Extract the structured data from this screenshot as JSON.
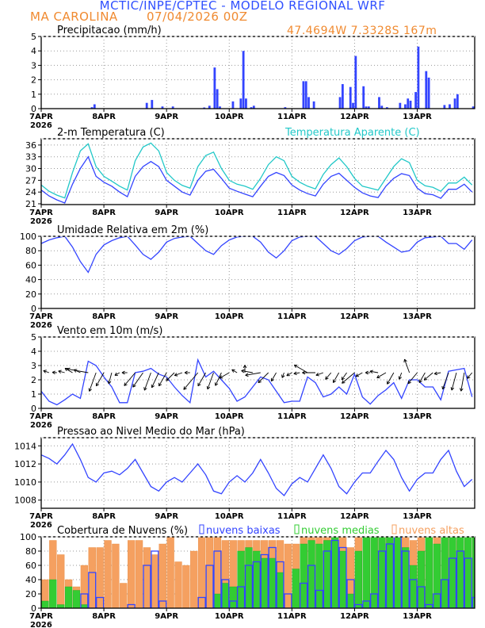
{
  "header": {
    "title": "MCTIC/INPE/CPTEC - MODELO REGIONAL WRF",
    "station": "MA CAROLINA",
    "run_date": "07/04/2026 00Z",
    "coords": "47.4694W 7.3328S 167m"
  },
  "colors": {
    "blue": "#3344ff",
    "cyan": "#22c8c8",
    "orange": "#f5a060",
    "green": "#33cc33",
    "black": "#000000",
    "title_blue": "#3050ff",
    "title_orange": "#f08a30"
  },
  "x_axis": {
    "ticks": [
      "7APR",
      "8APR",
      "9APR",
      "10APR",
      "11APR",
      "12APR",
      "13APR"
    ],
    "year": "2026",
    "start": "07APR00Z",
    "end": "13APR22Z"
  },
  "times": [
    "07APR00Z",
    "07APR03Z",
    "07APR06Z",
    "07APR09Z",
    "07APR12Z",
    "07APR15Z",
    "07APR18Z",
    "07APR21Z",
    "08APR00Z",
    "08APR03Z",
    "08APR06Z",
    "08APR09Z",
    "08APR12Z",
    "08APR15Z",
    "08APR18Z",
    "08APR21Z",
    "09APR00Z",
    "09APR03Z",
    "09APR06Z",
    "09APR09Z",
    "09APR12Z",
    "09APR15Z",
    "09APR18Z",
    "09APR21Z",
    "10APR00Z",
    "10APR03Z",
    "10APR06Z",
    "10APR09Z",
    "10APR12Z",
    "10APR15Z",
    "10APR18Z",
    "10APR21Z",
    "11APR00Z",
    "11APR03Z",
    "11APR06Z",
    "11APR09Z",
    "11APR12Z",
    "11APR15Z",
    "11APR18Z",
    "11APR21Z",
    "12APR00Z",
    "12APR03Z",
    "12APR06Z",
    "12APR09Z",
    "12APR12Z",
    "12APR15Z",
    "12APR18Z",
    "12APR21Z",
    "13APR00Z",
    "13APR03Z",
    "13APR06Z",
    "13APR09Z",
    "13APR12Z",
    "13APR15Z",
    "13APR18Z",
    "13APR21Z"
  ],
  "chart_data": [
    {
      "id": "precip",
      "type": "bar",
      "title": "Precipitacao (mm/h)",
      "ylim": [
        0,
        5
      ],
      "yticks": [
        "0",
        "1",
        "2",
        "3",
        "4",
        "5"
      ],
      "grid": true,
      "events": [
        [
          "07APR20Z",
          0.3
        ],
        [
          "07APR19Z",
          0.1
        ],
        [
          "08APR16Z",
          0.4
        ],
        [
          "08APR18Z",
          0.6
        ],
        [
          "08APR22Z",
          0.15
        ],
        [
          "09APR02Z",
          0.15
        ],
        [
          "09APR16Z",
          0.2
        ],
        [
          "09APR18Z",
          2.85
        ],
        [
          "09APR19Z",
          1.35
        ],
        [
          "09APR20Z",
          0.15
        ],
        [
          "09APR14Z",
          0.08
        ],
        [
          "10APR01Z",
          0.5
        ],
        [
          "10APR04Z",
          0.7
        ],
        [
          "10APR05Z",
          4.0
        ],
        [
          "10APR06Z",
          0.7
        ],
        [
          "10APR09Z",
          0.2
        ],
        [
          "10APR08Z",
          0.1
        ],
        [
          "10APR21Z",
          0.1
        ],
        [
          "11APR04Z",
          1.9
        ],
        [
          "11APR05Z",
          1.9
        ],
        [
          "11APR06Z",
          0.8
        ],
        [
          "11APR08Z",
          0.5
        ],
        [
          "11APR18Z",
          0.8
        ],
        [
          "11APR19Z",
          1.7
        ],
        [
          "11APR22Z",
          1.5
        ],
        [
          "11APR23Z",
          0.4
        ],
        [
          "12APR00Z",
          3.65
        ],
        [
          "12APR03Z",
          1.55
        ],
        [
          "12APR04Z",
          0.15
        ],
        [
          "12APR05Z",
          0.15
        ],
        [
          "12APR09Z",
          0.8
        ],
        [
          "12APR10Z",
          0.2
        ],
        [
          "12APR12Z",
          0.1
        ],
        [
          "12APR17Z",
          0.4
        ],
        [
          "12APR19Z",
          0.3
        ],
        [
          "12APR20Z",
          0.7
        ],
        [
          "12APR21Z",
          0.55
        ],
        [
          "12APR23Z",
          1.15
        ],
        [
          "13APR00Z",
          4.3
        ],
        [
          "13APR03Z",
          2.6
        ],
        [
          "13APR04Z",
          2.15
        ],
        [
          "13APR10Z",
          0.25
        ],
        [
          "13APR12Z",
          0.3
        ],
        [
          "13APR14Z",
          0.7
        ],
        [
          "13APR15Z",
          1.0
        ],
        [
          "13APR21Z",
          0.15
        ],
        [
          "13APR22Z",
          0.15
        ]
      ]
    },
    {
      "id": "temp",
      "type": "line",
      "title": "2-m Temperatura (C)",
      "legend": "Temperatura Aparente (C)",
      "ylim": [
        20.8,
        37.6
      ],
      "yticks": [
        "21",
        "24",
        "27",
        "30",
        "33",
        "36"
      ],
      "grid": true,
      "series": [
        {
          "name": "2-m Temperatura (C)",
          "color": "#3344ff",
          "values": [
            24.5,
            23,
            22,
            21.2,
            26,
            30,
            33,
            28,
            26.5,
            25.5,
            24,
            22.8,
            28,
            30.5,
            31.8,
            30.5,
            27,
            25.5,
            24,
            23.2,
            27,
            29.3,
            29.8,
            27.5,
            25,
            24.2,
            23.5,
            22.8,
            25.5,
            28,
            29,
            28.2,
            25.8,
            24.5,
            23.6,
            23,
            26,
            28,
            28.8,
            27,
            25.2,
            23.8,
            23,
            22.6,
            25.5,
            27.5,
            28.7,
            28.2,
            25,
            23.6,
            23.3,
            22.4,
            24.7,
            24.7,
            26,
            24
          ]
        },
        {
          "name": "Temperatura Aparente (C)",
          "color": "#22c8c8",
          "values": [
            25.8,
            24.2,
            23.2,
            22.5,
            29,
            34.5,
            36.3,
            30.5,
            28,
            26.8,
            25.5,
            24.5,
            32,
            35.5,
            36.5,
            34.5,
            29,
            27,
            25.7,
            25,
            30.5,
            33.3,
            34.2,
            30,
            27,
            26,
            25.5,
            24.7,
            27.5,
            31,
            33,
            32,
            28,
            26.5,
            25.5,
            24.8,
            28.5,
            31,
            32.7,
            30.5,
            27.5,
            25.5,
            25,
            24.5,
            27.5,
            30.5,
            32.5,
            31.5,
            27,
            25.6,
            25.2,
            24.2,
            26.3,
            26.3,
            27.8,
            25.8
          ]
        }
      ]
    },
    {
      "id": "rh",
      "type": "line",
      "title": "Umidade Relativa em 2m (%)",
      "ylim": [
        0,
        100
      ],
      "yticks": [
        "0",
        "20",
        "40",
        "60",
        "80",
        "100"
      ],
      "grid": true,
      "series": [
        {
          "name": "Umidade Relativa em 2m (%)",
          "color": "#3344ff",
          "values": [
            90,
            95,
            98,
            100,
            85,
            65,
            50,
            75,
            88,
            94,
            98,
            100,
            88,
            75,
            68,
            78,
            92,
            97,
            99,
            100,
            90,
            80,
            75,
            87,
            95,
            99,
            100,
            100,
            92,
            78,
            70,
            80,
            94,
            99,
            100,
            100,
            90,
            80,
            75,
            83,
            94,
            99,
            100,
            100,
            92,
            85,
            78,
            80,
            92,
            98,
            99,
            100,
            90,
            90,
            82,
            95
          ]
        }
      ]
    },
    {
      "id": "wind",
      "type": "line",
      "title": "Vento em 10m (m/s)",
      "ylim": [
        0,
        5
      ],
      "yticks": [
        "0",
        "1",
        "2",
        "3",
        "4",
        "5"
      ],
      "grid": true,
      "series": [
        {
          "name": "Vento em 10m (m/s)",
          "color": "#3344ff",
          "values": [
            1.2,
            0.5,
            0.25,
            0.6,
            1.0,
            0.7,
            3.3,
            3.0,
            2.2,
            1.5,
            0.4,
            0.4,
            2.5,
            2.6,
            2.8,
            2.4,
            2.2,
            1.5,
            0.9,
            0.4,
            3.4,
            2.2,
            2.6,
            2.0,
            1.4,
            0.5,
            0.8,
            1.5,
            2.2,
            2.0,
            1.2,
            0.4,
            0.5,
            0.5,
            2.2,
            1.8,
            0.8,
            1.0,
            1.5,
            1.0,
            2.4,
            0.8,
            0.3,
            0.9,
            1.3,
            1.8,
            0.7,
            2.0,
            2.0,
            1.5,
            1.5,
            0.6,
            2.6,
            2.7,
            2.8,
            0.8
          ]
        }
      ],
      "direction_deg": [
        100,
        110,
        95,
        105,
        120,
        115,
        100,
        20,
        30,
        15,
        60,
        90,
        40,
        35,
        20,
        25,
        30,
        45,
        70,
        90,
        40,
        30,
        20,
        25,
        60,
        120,
        180,
        100,
        80,
        45,
        30,
        20,
        60,
        80,
        120,
        90,
        70,
        40,
        30,
        35,
        50,
        60,
        90,
        100,
        60,
        30,
        20,
        160,
        40,
        30,
        50,
        80,
        20,
        15,
        10,
        40
      ]
    },
    {
      "id": "pressure",
      "type": "line",
      "title": "Pressao ao Nivel Medio do Mar (hPa)",
      "ylim": [
        1007.1,
        1014.9
      ],
      "yticks": [
        "1008",
        "1010",
        "1012",
        "1014"
      ],
      "grid": true,
      "series": [
        {
          "name": "Pressao ao Nivel Medio do Mar (hPa)",
          "color": "#3344ff",
          "values": [
            1013,
            1012.6,
            1012,
            1013,
            1014.2,
            1012.5,
            1010.5,
            1010,
            1011,
            1011.2,
            1010.8,
            1011.5,
            1012.5,
            1011,
            1009.5,
            1009,
            1010,
            1010.5,
            1010,
            1011,
            1012,
            1010.8,
            1009,
            1008.7,
            1010,
            1010.7,
            1010,
            1011,
            1012.5,
            1011,
            1009.3,
            1008.5,
            1009.8,
            1010.5,
            1010,
            1011.5,
            1013,
            1011.5,
            1009.5,
            1008.7,
            1010,
            1011,
            1011,
            1012.3,
            1013.5,
            1012.5,
            1010.5,
            1009,
            1010.3,
            1011,
            1011,
            1012.5,
            1013.5,
            1011.2,
            1009.5,
            1010.3
          ]
        }
      ]
    },
    {
      "id": "clouds",
      "type": "bar",
      "title": "Cobertura de Nuvens (%)",
      "ylim": [
        0,
        100
      ],
      "yticks": [
        "0",
        "20",
        "40",
        "60",
        "80",
        "100"
      ],
      "grid": true,
      "series": [
        {
          "name": "nuvens altas",
          "color": "#f5a060",
          "values": [
            40,
            95,
            75,
            40,
            30,
            60,
            85,
            85,
            95,
            90,
            35,
            95,
            95,
            85,
            75,
            90,
            100,
            65,
            60,
            80,
            100,
            100,
            100,
            95,
            95,
            95,
            95,
            95,
            95,
            95,
            95,
            90,
            90,
            100,
            100,
            100,
            100,
            100,
            100,
            85,
            100,
            100,
            100,
            100,
            100,
            100,
            100,
            95,
            100,
            100,
            100,
            100,
            100,
            95,
            100,
            100
          ]
        },
        {
          "name": "nuvens medias",
          "color": "#33cc33",
          "values": [
            10,
            40,
            5,
            30,
            25,
            5,
            0,
            0,
            0,
            0,
            0,
            0,
            0,
            0,
            0,
            0,
            0,
            0,
            0,
            0,
            0,
            0,
            20,
            35,
            30,
            80,
            85,
            80,
            70,
            70,
            50,
            0,
            55,
            90,
            95,
            90,
            95,
            100,
            80,
            20,
            80,
            100,
            100,
            100,
            100,
            100,
            85,
            60,
            80,
            100,
            90,
            100,
            100,
            100,
            100,
            100
          ]
        },
        {
          "name": "nuvens baixas",
          "color": "#3344ff",
          "values": [
            0,
            0,
            0,
            0,
            0,
            20,
            50,
            15,
            0,
            0,
            0,
            5,
            0,
            60,
            80,
            10,
            0,
            0,
            0,
            0,
            15,
            60,
            80,
            40,
            10,
            30,
            60,
            65,
            75,
            85,
            65,
            20,
            0,
            35,
            60,
            25,
            80,
            95,
            85,
            40,
            5,
            10,
            20,
            80,
            90,
            100,
            80,
            40,
            30,
            5,
            20,
            40,
            70,
            80,
            70,
            15
          ]
        }
      ]
    }
  ]
}
